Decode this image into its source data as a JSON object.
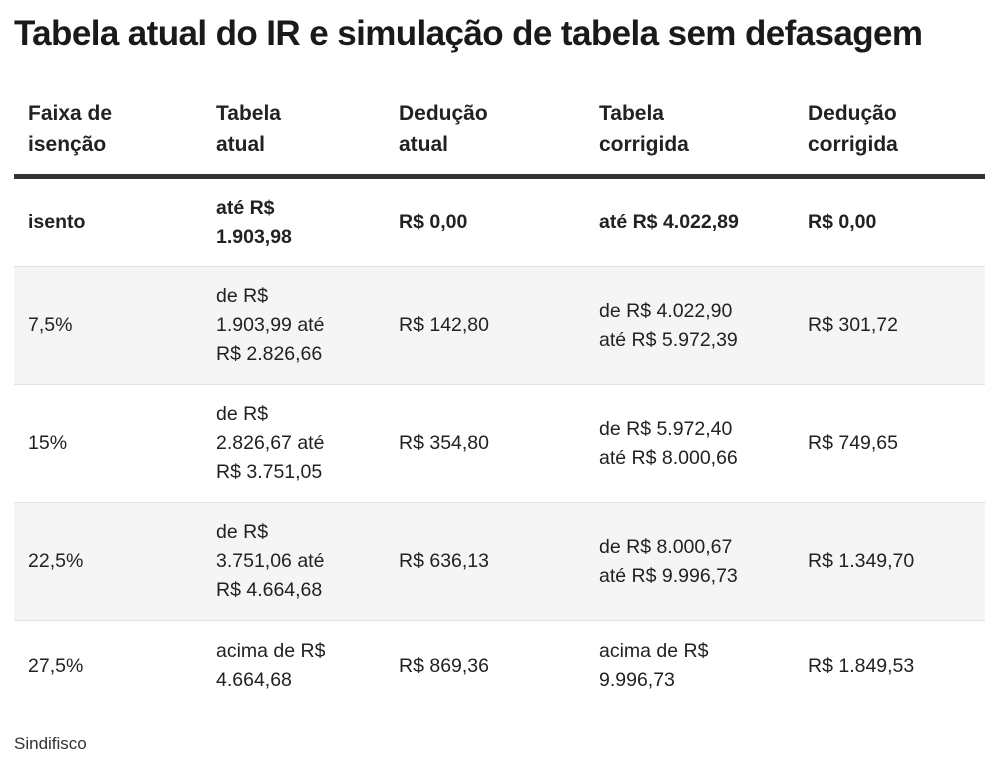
{
  "title": "Tabela atual do IR e simulação de tabela sem defasagem",
  "headers": [
    [
      "Faixa de",
      "isenção"
    ],
    [
      "Tabela",
      "atual"
    ],
    [
      "Dedução",
      "atual"
    ],
    [
      "Tabela",
      "corrigida"
    ],
    [
      "Dedução",
      "corrigida"
    ]
  ],
  "rows": [
    {
      "faixa": "isento",
      "tabela_atual": [
        "até R$",
        "1.903,98"
      ],
      "deducao_atual": "R$ 0,00",
      "tabela_corrigida": [
        "até R$ 4.022,89"
      ],
      "deducao_corrigida": "R$ 0,00"
    },
    {
      "faixa": "7,5%",
      "tabela_atual": [
        "de R$",
        "1.903,99 até",
        "R$ 2.826,66"
      ],
      "deducao_atual": "R$ 142,80",
      "tabela_corrigida": [
        "de R$ 4.022,90",
        "até R$ 5.972,39"
      ],
      "deducao_corrigida": "R$ 301,72"
    },
    {
      "faixa": "15%",
      "tabela_atual": [
        "de R$",
        "2.826,67 até",
        "R$ 3.751,05"
      ],
      "deducao_atual": "R$ 354,80",
      "tabela_corrigida": [
        "de R$ 5.972,40",
        "até R$ 8.000,66"
      ],
      "deducao_corrigida": "R$ 749,65"
    },
    {
      "faixa": "22,5%",
      "tabela_atual": [
        "de R$",
        "3.751,06 até",
        "R$ 4.664,68"
      ],
      "deducao_atual": "R$ 636,13",
      "tabela_corrigida": [
        "de R$ 8.000,67",
        "até R$ 9.996,73"
      ],
      "deducao_corrigida": "R$ 1.349,70"
    },
    {
      "faixa": "27,5%",
      "tabela_atual": [
        "acima de R$",
        "4.664,68"
      ],
      "deducao_atual": "R$ 869,36",
      "tabela_corrigida": [
        "acima de R$",
        "9.996,73"
      ],
      "deducao_corrigida": "R$ 1.849,53"
    }
  ],
  "source": "Sindifisco"
}
